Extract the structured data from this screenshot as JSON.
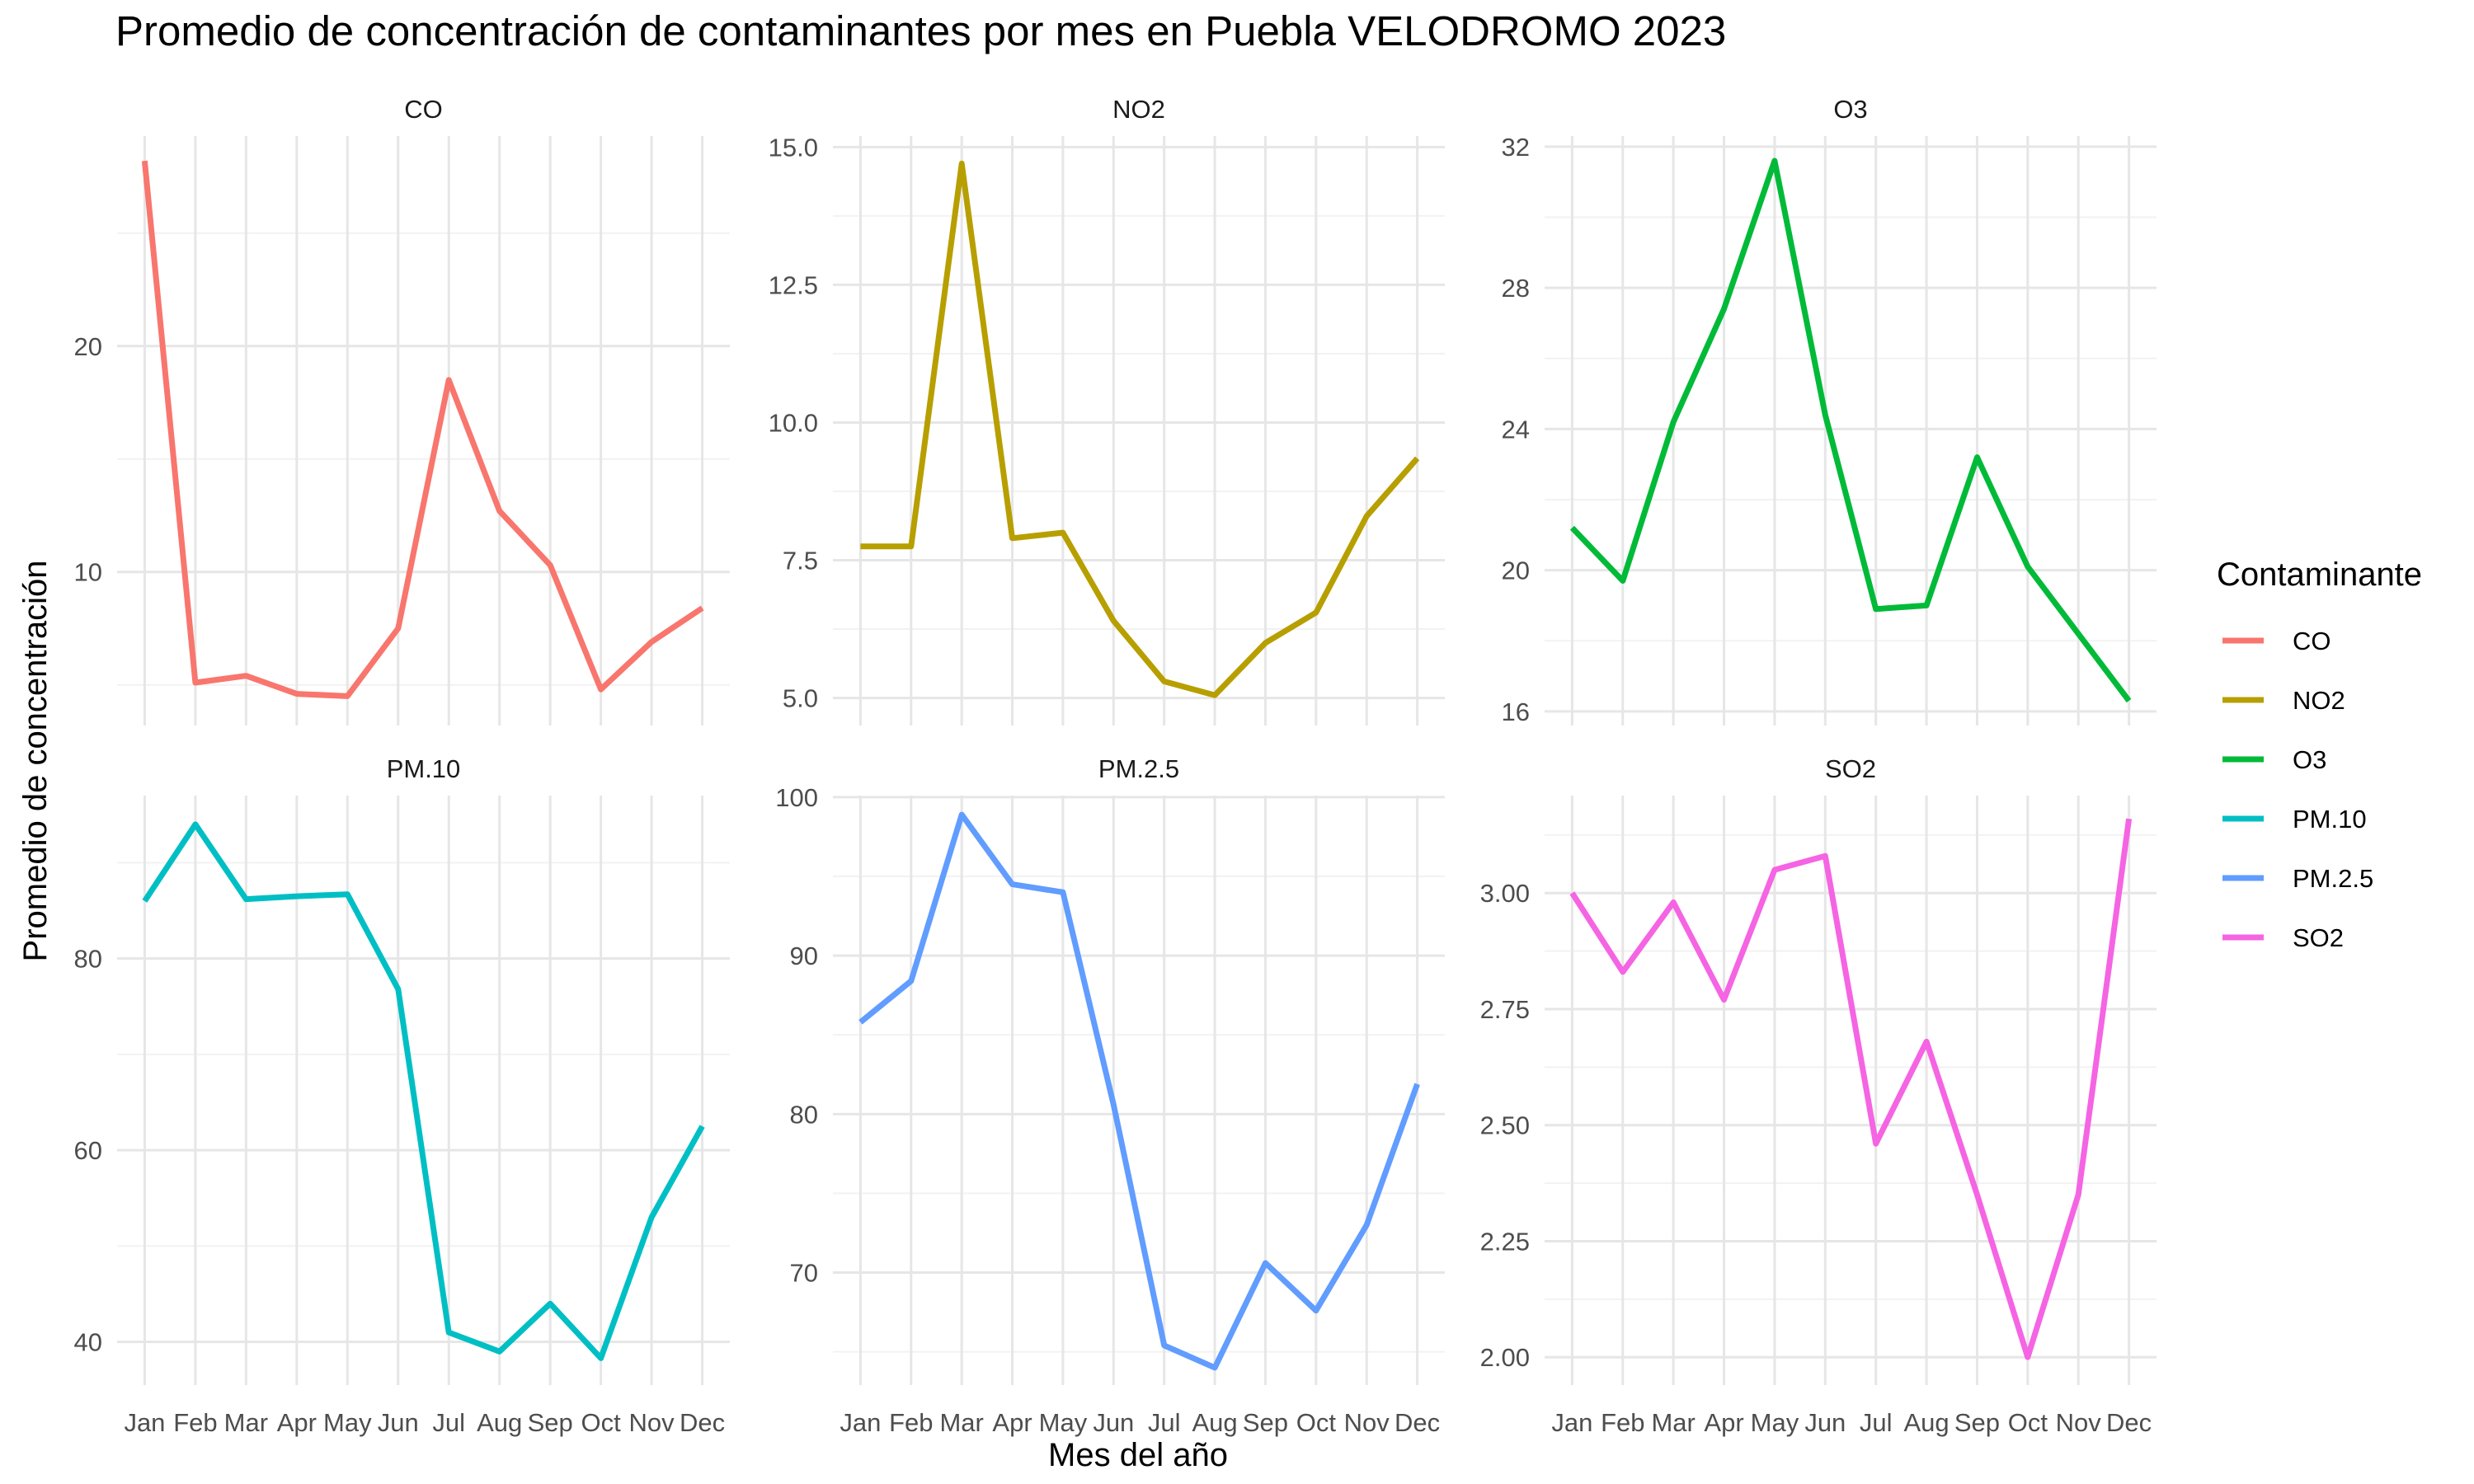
{
  "chart_data": {
    "type": "line",
    "title": "Promedio de concentración de contaminantes por mes en Puebla VELODROMO 2023",
    "xlabel": "Mes del año",
    "ylabel": "Promedio de concentración",
    "categories": [
      "Jan",
      "Feb",
      "Mar",
      "Apr",
      "May",
      "Jun",
      "Jul",
      "Aug",
      "Sep",
      "Oct",
      "Nov",
      "Dec"
    ],
    "legend": {
      "title": "Contaminante",
      "position": "right"
    },
    "grid": true,
    "facets": [
      {
        "name": "CO",
        "color": "#F8766D",
        "ylim": [
          3.2,
          29.3
        ],
        "yticks": [
          10,
          20
        ],
        "ytick_labels": [
          "10",
          "20"
        ],
        "values": [
          28.2,
          5.1,
          5.4,
          4.6,
          4.5,
          7.5,
          18.5,
          12.7,
          10.3,
          4.8,
          6.9,
          8.4
        ]
      },
      {
        "name": "NO2",
        "color": "#B79F00",
        "ylim": [
          4.5,
          15.2
        ],
        "yticks": [
          5.0,
          7.5,
          10.0,
          12.5,
          15.0
        ],
        "ytick_labels": [
          "5.0",
          "7.5",
          "10.0",
          "12.5",
          "15.0"
        ],
        "values": [
          7.75,
          7.75,
          14.7,
          7.9,
          8.0,
          6.4,
          5.3,
          5.05,
          6.0,
          6.55,
          8.3,
          9.35
        ]
      },
      {
        "name": "O3",
        "color": "#00BA38",
        "ylim": [
          15.6,
          32.3
        ],
        "yticks": [
          16,
          20,
          24,
          28,
          32
        ],
        "ytick_labels": [
          "16",
          "20",
          "24",
          "28",
          "32"
        ],
        "values": [
          21.2,
          19.7,
          24.2,
          27.4,
          31.6,
          24.4,
          18.9,
          19.0,
          23.2,
          20.1,
          18.2,
          16.3
        ]
      },
      {
        "name": "PM.10",
        "color": "#00BFC4",
        "ylim": [
          35.5,
          97.0
        ],
        "yticks": [
          40,
          60,
          80
        ],
        "ytick_labels": [
          "40",
          "60",
          "80"
        ],
        "values": [
          86,
          94,
          86.2,
          86.5,
          86.7,
          76.8,
          41,
          39,
          44,
          38.3,
          53,
          62.5
        ]
      },
      {
        "name": "PM.2.5",
        "color": "#619CFF",
        "ylim": [
          62.9,
          100.1
        ],
        "yticks": [
          70,
          80,
          90,
          100
        ],
        "ytick_labels": [
          "70",
          "80",
          "90",
          "100"
        ],
        "values": [
          85.8,
          88.4,
          98.9,
          94.5,
          94.0,
          80.6,
          65.4,
          64.0,
          70.6,
          67.6,
          73.0,
          81.9
        ]
      },
      {
        "name": "SO2",
        "color": "#F564E3",
        "ylim": [
          1.94,
          3.21
        ],
        "yticks": [
          2.0,
          2.25,
          2.5,
          2.75,
          3.0
        ],
        "ytick_labels": [
          "2.00",
          "2.25",
          "2.50",
          "2.75",
          "3.00"
        ],
        "values": [
          3.0,
          2.83,
          2.98,
          2.77,
          3.05,
          3.08,
          2.46,
          2.68,
          2.35,
          2.0,
          2.35,
          3.16
        ]
      }
    ]
  }
}
